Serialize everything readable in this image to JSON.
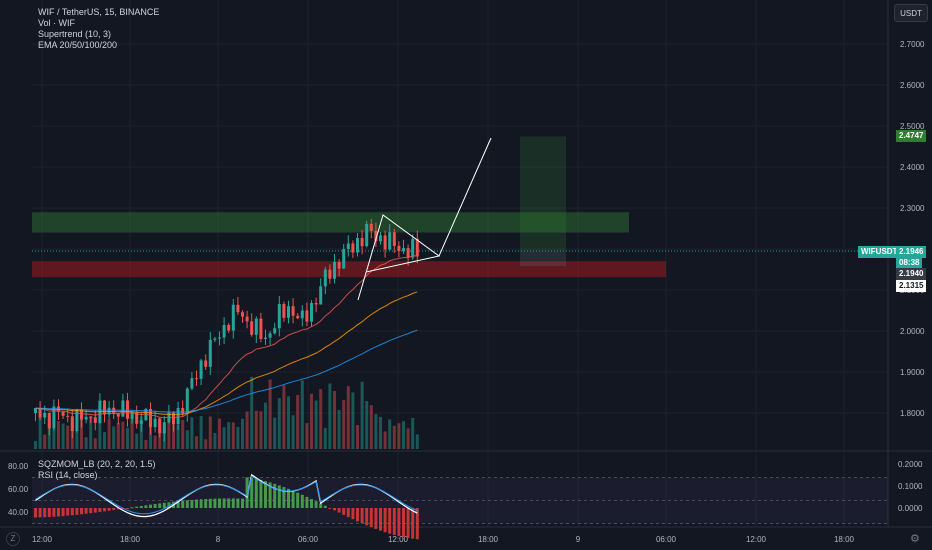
{
  "legend": {
    "title": "WIF / TetherUS, 15, BINANCE",
    "vol": "Vol · WIF",
    "supertrend": "Supertrend (10, 3)",
    "ema": "EMA 20/50/100/200"
  },
  "indicator_legend": {
    "sqzmom": "SQZMOM_LB (20, 2, 20, 1.5)",
    "rsi": "RSI (14, close)"
  },
  "currency_button": "USDT",
  "price_tags": {
    "target": "2.4747",
    "symbol": "WIFUSDT",
    "last": "2.1946",
    "countdown": "08:38",
    "entry": "2.1940",
    "stop": "2.1315"
  },
  "colors": {
    "background": "#131722",
    "up": "#26a69a",
    "down": "#ef5350",
    "profit_zone": "#2e7d32",
    "loss_zone": "#b71c1c",
    "rsi": "#ffffff",
    "ema": "#2196f3"
  },
  "icons": {
    "corner_logo": "tradingview-logo-icon",
    "settings": "gear-icon"
  },
  "corner_logo_text": "Z",
  "chart_data": {
    "type": "candlestick",
    "symbol": "WIF / TetherUS",
    "interval": "15",
    "exchange": "BINANCE",
    "price_axis": {
      "ticks": [
        "2.7000",
        "2.6000",
        "2.5000",
        "2.4000",
        "2.3000",
        "2.2000",
        "2.1000",
        "2.0000",
        "1.9000",
        "1.8000"
      ],
      "range": [
        1.75,
        2.78
      ]
    },
    "indicator_axes": {
      "rsi_ticks": [
        "80.00",
        "60.00",
        "40.00"
      ],
      "sqzmom_ticks": [
        "0.2000",
        "0.1000",
        "0.0000"
      ]
    },
    "time_axis": [
      "12:00",
      "18:00",
      "8",
      "06:00",
      "12:00",
      "18:00",
      "9",
      "06:00",
      "12:00",
      "18:00"
    ],
    "key_levels": {
      "last_price": 2.1946,
      "entry": 2.194,
      "stop": 2.1315,
      "target": 2.4747,
      "supply_zone": [
        2.25,
        2.28
      ],
      "demand_zone": [
        2.16,
        2.18
      ]
    },
    "price_path_approx": [
      1.8,
      1.79,
      1.8,
      1.78,
      1.79,
      1.8,
      1.81,
      1.8,
      1.79,
      1.78,
      1.77,
      1.79,
      1.85,
      1.92,
      1.97,
      2.02,
      2.05,
      2.01,
      1.98,
      2.03,
      2.06,
      2.02,
      2.08,
      2.14,
      2.18,
      2.21,
      2.24,
      2.23,
      2.21,
      2.2,
      2.19
    ]
  }
}
